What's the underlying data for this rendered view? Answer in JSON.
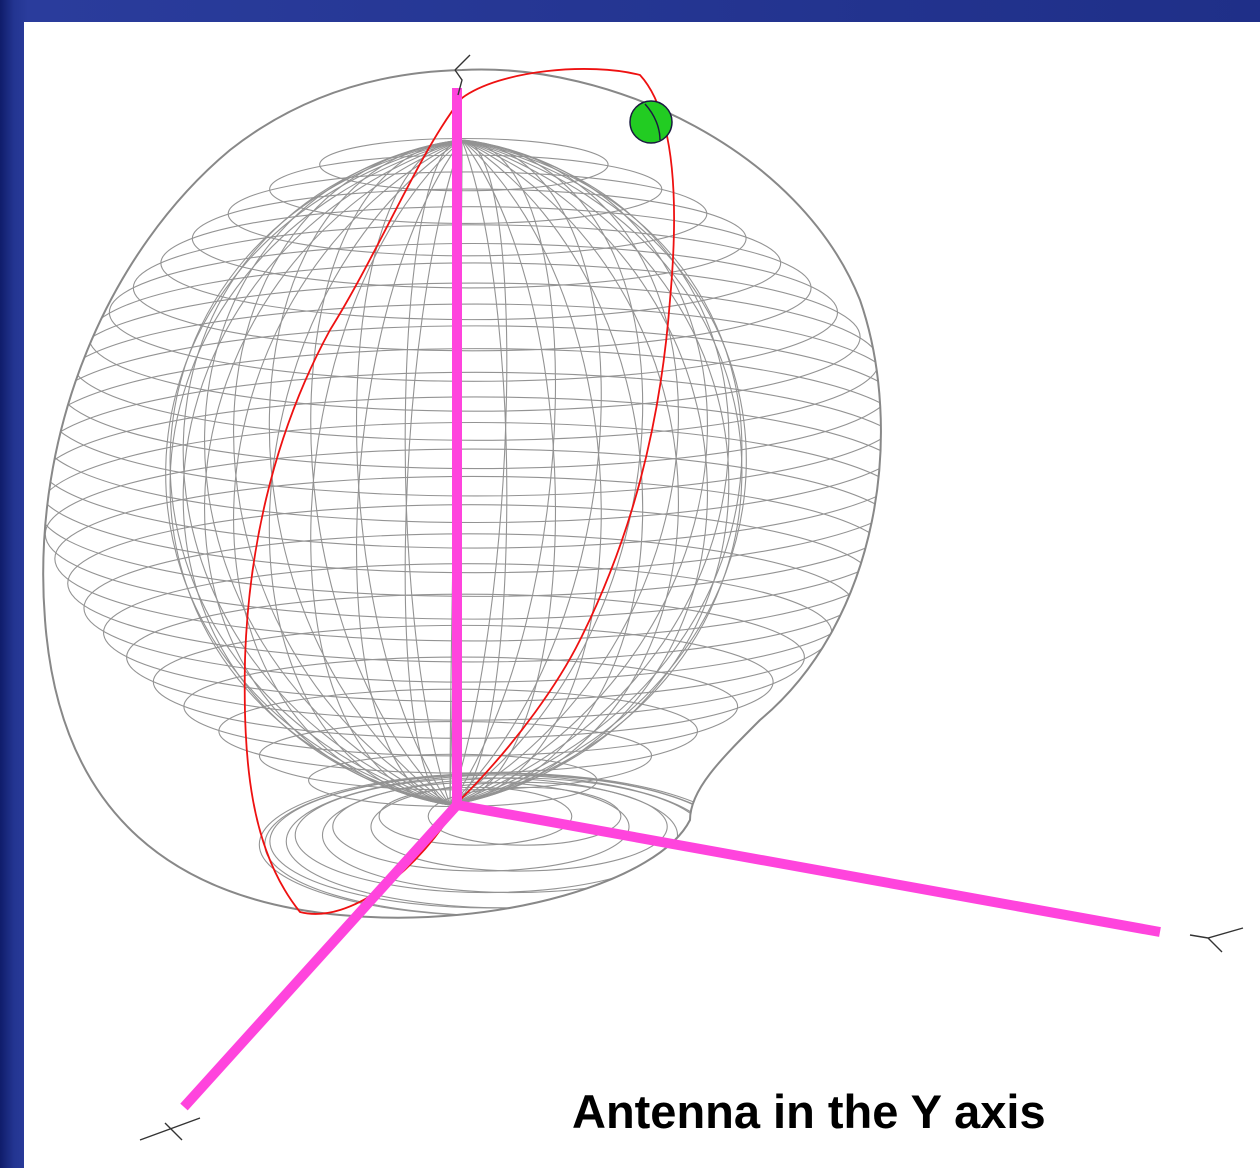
{
  "caption": "Antenna in the Y axis",
  "colors": {
    "axis": "#ff44dd",
    "mesh": "#888888",
    "trace": "#ee1111",
    "marker": "#22cc22",
    "background_panel": "#ffffff",
    "slide_border": "#1e2f8a"
  },
  "icons": {
    "axis_y_label": "y-axis-end-glyph",
    "axis_z_label": "z-axis-end-glyph",
    "axis_x_label": "x-axis-end-glyph"
  }
}
